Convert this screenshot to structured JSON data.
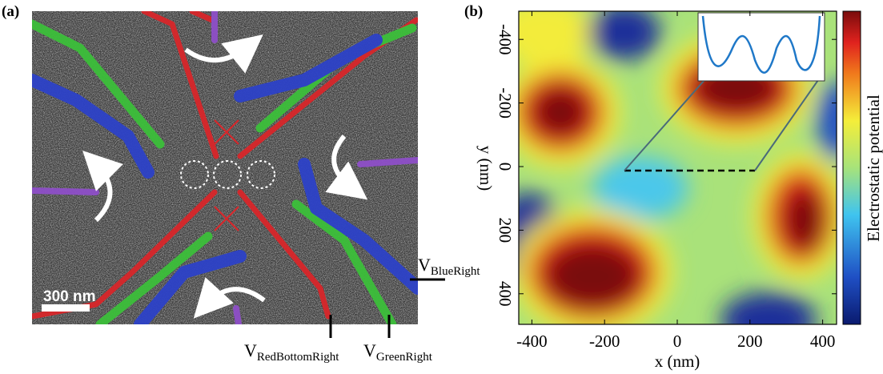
{
  "panels": {
    "a": {
      "label": "(a)",
      "scale_bar": "300 nm",
      "voltages": [
        {
          "main": "V",
          "sub": "BlueRight"
        },
        {
          "main": "V",
          "sub": "RedBottomRight"
        },
        {
          "main": "V",
          "sub": "GreenRight"
        }
      ]
    },
    "b": {
      "label": "(b)",
      "xlabel": "x (nm)",
      "ylabel": "y (nm)",
      "xticks": [
        -400,
        -200,
        0,
        200,
        400
      ],
      "yticks": [
        -400,
        -200,
        0,
        200,
        400
      ],
      "colorbar_label": "Electrostatic potential"
    }
  }
}
